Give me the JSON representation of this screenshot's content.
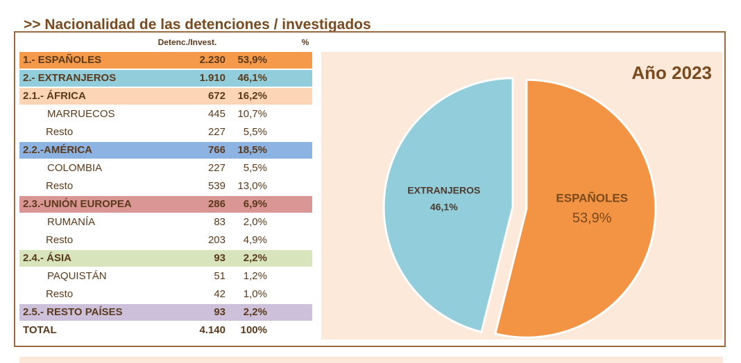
{
  "header": {
    "title": ">> Nacionalidad de las detenciones / investigados"
  },
  "table": {
    "columns": [
      "Detenc./Invest.",
      "%"
    ],
    "rows": [
      [
        "1.- ESPAÑOLES",
        "2.230",
        "53,9%"
      ],
      [
        "2.- EXTRANJEROS",
        "1.910",
        "46,1%"
      ],
      [
        "2.1.- ÁFRICA",
        "672",
        "16,2%"
      ],
      [
        "MARRUECOS",
        "445",
        "10,7%"
      ],
      [
        "Resto",
        "227",
        "5,5%"
      ],
      [
        "2.2.-AMÉRICA",
        "766",
        "18,5%"
      ],
      [
        "COLOMBIA",
        "227",
        "5,5%"
      ],
      [
        "Resto",
        "539",
        "13,0%"
      ],
      [
        "2.3.-UNIÓN EUROPEA",
        "286",
        "6,9%"
      ],
      [
        "RUMANÍA",
        "83",
        "2,0%"
      ],
      [
        "Resto",
        "203",
        "4,9%"
      ],
      [
        "2.4.- ÁSIA",
        "93",
        "2,2%"
      ],
      [
        "PAQUISTÁN",
        "51",
        "1,2%"
      ],
      [
        "Resto",
        "42",
        "1,0%"
      ],
      [
        "2.5.- RESTO PAÍSES",
        "93",
        "2,2%"
      ],
      [
        "TOTAL",
        "4.140",
        "100%"
      ]
    ]
  },
  "chart_data": {
    "type": "pie",
    "title": "Año 2023",
    "categories": [
      "ESPAÑOLES",
      "EXTRANJEROS"
    ],
    "values": [
      53.9,
      46.1
    ],
    "value_labels": [
      "53,9%",
      "46,1%"
    ],
    "colors": [
      "#f39444",
      "#92cddc"
    ]
  }
}
